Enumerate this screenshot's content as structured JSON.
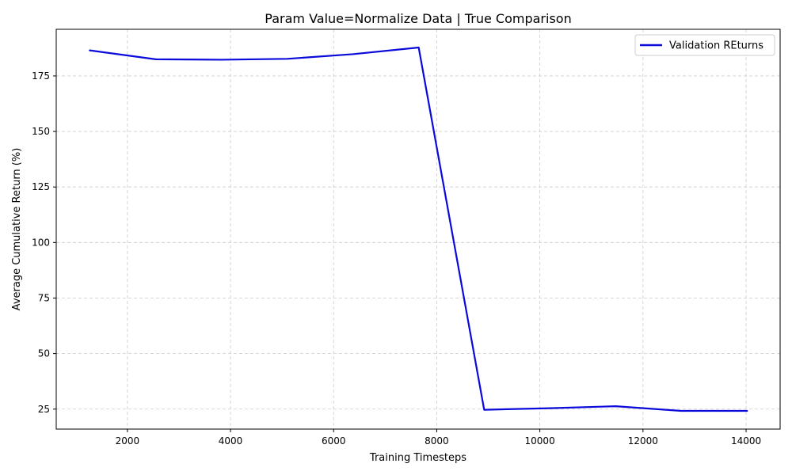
{
  "chart_data": {
    "type": "line",
    "title": "Param Value=Normalize Data | True Comparison",
    "xlabel": "Training Timesteps",
    "ylabel": "Average Cumulative Return (%)",
    "xlim": [
      620,
      14660
    ],
    "ylim": [
      16,
      196
    ],
    "xticks": [
      2000,
      4000,
      6000,
      8000,
      10000,
      12000,
      14000
    ],
    "yticks": [
      25,
      50,
      75,
      100,
      125,
      150,
      175
    ],
    "grid": true,
    "grid_style": "dashed",
    "legend_position": "top-right",
    "series": [
      {
        "name": "Validation REturns",
        "color": "#0a0adc",
        "x": [
          1270,
          2550,
          3820,
          5100,
          6370,
          7650,
          8920,
          10200,
          11470,
          12740,
          14020
        ],
        "y": [
          186.5,
          182.5,
          182.3,
          182.7,
          184.8,
          187.8,
          24.7,
          25.4,
          26.3,
          24.2,
          24.2
        ]
      }
    ]
  }
}
